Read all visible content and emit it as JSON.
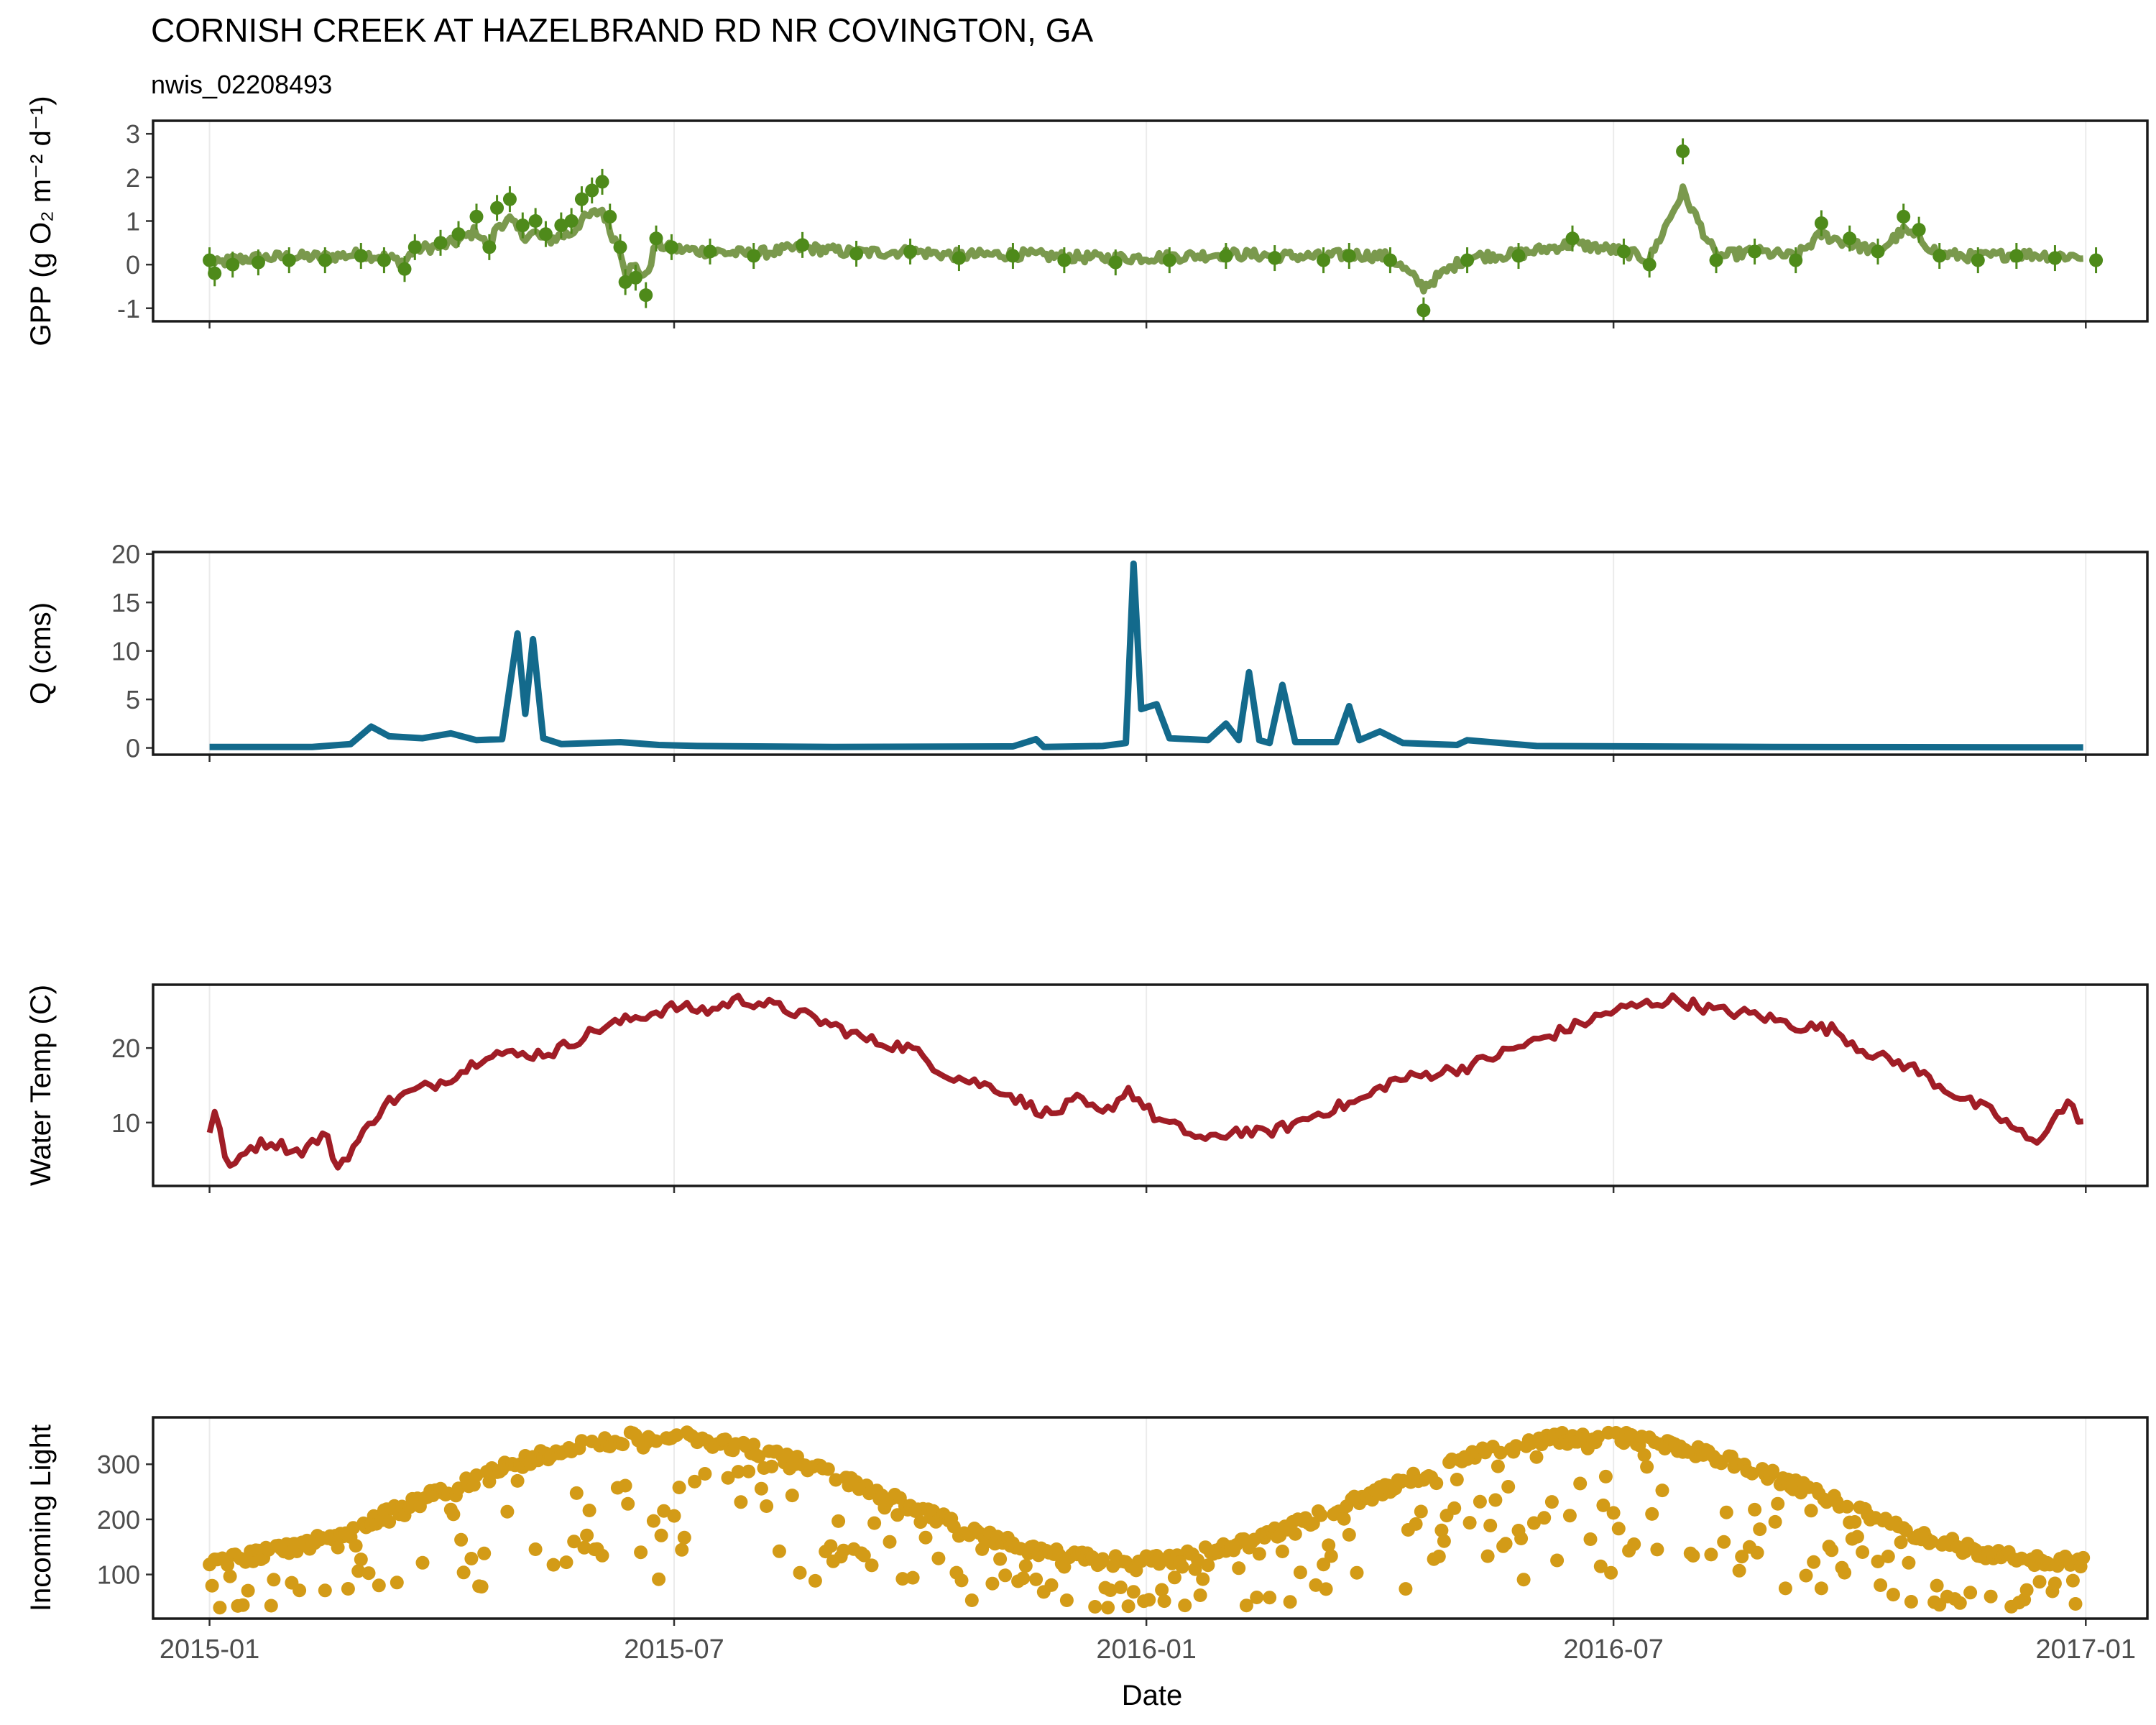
{
  "chart_data": {
    "type": "faceted_timeseries",
    "title": "CORNISH CREEK AT HAZELBRAND RD NR COVINGTON, GA",
    "subtitle": "nwis_02208493",
    "xlabel": "Date",
    "x_ticks": [
      "2015-01",
      "2015-07",
      "2016-01",
      "2016-07",
      "2017-01"
    ],
    "x_range": [
      "2014-12-10",
      "2017-01-25"
    ],
    "grid": "vertical major lines on date ticks, no horizontal grid",
    "colors": {
      "gpp": "#4e8a1a",
      "gpp_line": "#6b8e3a",
      "q": "#136a8c",
      "temp": "#a01d26",
      "light": "#d39b17"
    },
    "panels": [
      {
        "id": "gpp",
        "type": "scatter+line with error bars",
        "ylabel": "GPP (g O₂ m⁻² d⁻¹)",
        "ylim": [
          -1.3,
          3.3
        ],
        "y_ticks": [
          -1,
          0,
          1,
          2,
          3
        ],
        "points": [
          [
            "2015-01-01",
            0.1
          ],
          [
            "2015-01-03",
            -0.2
          ],
          [
            "2015-01-10",
            0.0
          ],
          [
            "2015-01-20",
            0.05
          ],
          [
            "2015-02-01",
            0.1
          ],
          [
            "2015-02-15",
            0.1
          ],
          [
            "2015-03-01",
            0.2
          ],
          [
            "2015-03-10",
            0.1
          ],
          [
            "2015-03-18",
            -0.1
          ],
          [
            "2015-03-22",
            0.4
          ],
          [
            "2015-04-01",
            0.5
          ],
          [
            "2015-04-08",
            0.7
          ],
          [
            "2015-04-15",
            1.1
          ],
          [
            "2015-04-20",
            0.4
          ],
          [
            "2015-04-23",
            1.3
          ],
          [
            "2015-04-28",
            1.5
          ],
          [
            "2015-05-03",
            0.9
          ],
          [
            "2015-05-08",
            1.0
          ],
          [
            "2015-05-12",
            0.7
          ],
          [
            "2015-05-18",
            0.9
          ],
          [
            "2015-05-22",
            1.0
          ],
          [
            "2015-05-26",
            1.5
          ],
          [
            "2015-05-30",
            1.7
          ],
          [
            "2015-06-03",
            1.9
          ],
          [
            "2015-06-06",
            1.1
          ],
          [
            "2015-06-10",
            0.4
          ],
          [
            "2015-06-12",
            -0.4
          ],
          [
            "2015-06-16",
            -0.3
          ],
          [
            "2015-06-20",
            -0.7
          ],
          [
            "2015-06-24",
            0.6
          ],
          [
            "2015-06-30",
            0.4
          ],
          [
            "2015-07-15",
            0.3
          ],
          [
            "2015-08-01",
            0.2
          ],
          [
            "2015-08-20",
            0.45
          ],
          [
            "2015-09-10",
            0.25
          ],
          [
            "2015-10-01",
            0.3
          ],
          [
            "2015-10-20",
            0.15
          ],
          [
            "2015-11-10",
            0.2
          ],
          [
            "2015-11-30",
            0.1
          ],
          [
            "2015-12-20",
            0.05
          ],
          [
            "2016-01-10",
            0.1
          ],
          [
            "2016-02-01",
            0.2
          ],
          [
            "2016-02-20",
            0.15
          ],
          [
            "2016-03-10",
            0.1
          ],
          [
            "2016-03-20",
            0.2
          ],
          [
            "2016-04-05",
            0.1
          ],
          [
            "2016-04-18",
            -1.05
          ],
          [
            "2016-05-05",
            0.1
          ],
          [
            "2016-05-25",
            0.2
          ],
          [
            "2016-06-15",
            0.6
          ],
          [
            "2016-07-05",
            0.3
          ],
          [
            "2016-07-15",
            0.0
          ],
          [
            "2016-07-28",
            2.6
          ],
          [
            "2016-08-10",
            0.1
          ],
          [
            "2016-08-25",
            0.3
          ],
          [
            "2016-09-10",
            0.1
          ],
          [
            "2016-09-20",
            0.95
          ],
          [
            "2016-10-01",
            0.6
          ],
          [
            "2016-10-12",
            0.3
          ],
          [
            "2016-10-22",
            1.1
          ],
          [
            "2016-10-28",
            0.8
          ],
          [
            "2016-11-05",
            0.2
          ],
          [
            "2016-11-20",
            0.1
          ],
          [
            "2016-12-05",
            0.2
          ],
          [
            "2016-12-20",
            0.15
          ],
          [
            "2017-01-05",
            0.1
          ]
        ]
      },
      {
        "id": "q",
        "type": "line",
        "ylabel": "Q (cms)",
        "ylim": [
          -0.7,
          20.2
        ],
        "y_ticks": [
          0,
          5,
          10,
          15,
          20
        ],
        "points": [
          [
            "2015-01-01",
            0.1
          ],
          [
            "2015-02-10",
            0.1
          ],
          [
            "2015-02-25",
            0.4
          ],
          [
            "2015-03-05",
            2.2
          ],
          [
            "2015-03-12",
            1.2
          ],
          [
            "2015-03-25",
            1.0
          ],
          [
            "2015-04-05",
            1.5
          ],
          [
            "2015-04-15",
            0.8
          ],
          [
            "2015-04-25",
            0.9
          ],
          [
            "2015-05-01",
            11.8
          ],
          [
            "2015-05-04",
            3.5
          ],
          [
            "2015-05-07",
            11.2
          ],
          [
            "2015-05-11",
            1.0
          ],
          [
            "2015-05-18",
            0.4
          ],
          [
            "2015-06-10",
            0.6
          ],
          [
            "2015-06-25",
            0.3
          ],
          [
            "2015-07-10",
            0.2
          ],
          [
            "2015-09-01",
            0.1
          ],
          [
            "2015-11-10",
            0.15
          ],
          [
            "2015-11-19",
            0.9
          ],
          [
            "2015-11-22",
            0.1
          ],
          [
            "2015-12-15",
            0.2
          ],
          [
            "2015-12-24",
            0.5
          ],
          [
            "2015-12-27",
            19.0
          ],
          [
            "2015-12-30",
            4.0
          ],
          [
            "2016-01-05",
            4.5
          ],
          [
            "2016-01-10",
            1.0
          ],
          [
            "2016-01-25",
            0.8
          ],
          [
            "2016-02-01",
            2.5
          ],
          [
            "2016-02-06",
            0.8
          ],
          [
            "2016-02-10",
            7.8
          ],
          [
            "2016-02-14",
            0.8
          ],
          [
            "2016-02-18",
            0.5
          ],
          [
            "2016-02-23",
            6.5
          ],
          [
            "2016-02-28",
            0.6
          ],
          [
            "2016-03-15",
            0.6
          ],
          [
            "2016-03-20",
            4.3
          ],
          [
            "2016-03-24",
            0.8
          ],
          [
            "2016-04-01",
            1.7
          ],
          [
            "2016-04-10",
            0.5
          ],
          [
            "2016-05-01",
            0.3
          ],
          [
            "2016-05-05",
            0.8
          ],
          [
            "2016-06-01",
            0.2
          ],
          [
            "2016-09-01",
            0.1
          ],
          [
            "2016-12-31",
            0.05
          ]
        ]
      },
      {
        "id": "temp",
        "type": "line",
        "ylabel": "Water Temp (C)",
        "ylim": [
          1.5,
          28.5
        ],
        "y_ticks": [
          10,
          20
        ],
        "points": [
          [
            "2015-01-01",
            8.5
          ],
          [
            "2015-01-04",
            12.0
          ],
          [
            "2015-01-08",
            3.0
          ],
          [
            "2015-01-15",
            6.5
          ],
          [
            "2015-01-25",
            7.5
          ],
          [
            "2015-02-05",
            6.0
          ],
          [
            "2015-02-15",
            8.5
          ],
          [
            "2015-02-20",
            4.0
          ],
          [
            "2015-03-01",
            8.0
          ],
          [
            "2015-03-10",
            12.5
          ],
          [
            "2015-03-20",
            14.0
          ],
          [
            "2015-04-01",
            15.5
          ],
          [
            "2015-04-10",
            17.0
          ],
          [
            "2015-04-20",
            19.5
          ],
          [
            "2015-05-01",
            19.0
          ],
          [
            "2015-05-15",
            19.5
          ],
          [
            "2015-06-01",
            22.5
          ],
          [
            "2015-06-15",
            24.0
          ],
          [
            "2015-07-01",
            25.5
          ],
          [
            "2015-07-15",
            25.0
          ],
          [
            "2015-07-25",
            26.5
          ],
          [
            "2015-08-05",
            26.0
          ],
          [
            "2015-08-20",
            24.5
          ],
          [
            "2015-09-01",
            23.0
          ],
          [
            "2015-09-15",
            21.0
          ],
          [
            "2015-10-01",
            20.0
          ],
          [
            "2015-10-15",
            16.5
          ],
          [
            "2015-10-25",
            15.5
          ],
          [
            "2015-11-05",
            14.5
          ],
          [
            "2015-11-15",
            12.5
          ],
          [
            "2015-11-25",
            11.0
          ],
          [
            "2015-12-05",
            13.0
          ],
          [
            "2015-12-15",
            11.0
          ],
          [
            "2015-12-25",
            14.5
          ],
          [
            "2016-01-05",
            10.5
          ],
          [
            "2016-01-15",
            9.0
          ],
          [
            "2016-01-25",
            7.5
          ],
          [
            "2016-02-05",
            9.0
          ],
          [
            "2016-02-15",
            8.5
          ],
          [
            "2016-02-25",
            9.5
          ],
          [
            "2016-03-10",
            11.5
          ],
          [
            "2016-03-25",
            13.0
          ],
          [
            "2016-04-05",
            15.5
          ],
          [
            "2016-04-20",
            16.5
          ],
          [
            "2016-05-05",
            17.5
          ],
          [
            "2016-05-20",
            19.5
          ],
          [
            "2016-06-05",
            21.5
          ],
          [
            "2016-06-20",
            23.5
          ],
          [
            "2016-07-01",
            25.0
          ],
          [
            "2016-07-15",
            26.0
          ],
          [
            "2016-07-25",
            26.5
          ],
          [
            "2016-08-10",
            25.0
          ],
          [
            "2016-08-25",
            24.5
          ],
          [
            "2016-09-10",
            23.0
          ],
          [
            "2016-09-25",
            22.5
          ],
          [
            "2016-10-05",
            20.0
          ],
          [
            "2016-10-15",
            18.5
          ],
          [
            "2016-10-25",
            17.5
          ],
          [
            "2016-11-05",
            15.0
          ],
          [
            "2016-11-15",
            13.0
          ],
          [
            "2016-11-25",
            11.5
          ],
          [
            "2016-12-05",
            9.0
          ],
          [
            "2016-12-12",
            7.0
          ],
          [
            "2016-12-18",
            10.0
          ],
          [
            "2016-12-25",
            12.5
          ],
          [
            "2016-12-31",
            10.0
          ]
        ]
      },
      {
        "id": "light",
        "type": "scatter",
        "ylabel": "Incoming Light",
        "ylim": [
          20,
          385
        ],
        "y_ticks": [
          100,
          200,
          300
        ],
        "seasonal_envelope": {
          "upper_peak": 360,
          "upper_trough": 135,
          "peak_date": "06-25",
          "note": "dense points along clear-sky envelope with cloudy-day scatter below"
        },
        "points": [
          [
            "2015-01-01",
            110
          ],
          [
            "2015-01-05",
            140
          ],
          [
            "2015-01-10",
            60
          ],
          [
            "2015-01-20",
            145
          ],
          [
            "2015-02-01",
            150
          ],
          [
            "2015-02-10",
            90
          ],
          [
            "2015-02-20",
            170
          ],
          [
            "2015-03-01",
            190
          ],
          [
            "2015-03-15",
            210
          ],
          [
            "2015-03-25",
            60
          ],
          [
            "2015-04-01",
            240
          ],
          [
            "2015-04-15",
            260
          ],
          [
            "2015-04-25",
            120
          ],
          [
            "2015-05-05",
            290
          ],
          [
            "2015-05-20",
            320
          ],
          [
            "2015-06-01",
            340
          ],
          [
            "2015-06-10",
            200
          ],
          [
            "2015-06-20",
            350
          ],
          [
            "2015-07-01",
            330
          ],
          [
            "2015-07-15",
            355
          ],
          [
            "2015-07-25",
            300
          ],
          [
            "2015-08-05",
            340
          ],
          [
            "2015-08-20",
            310
          ],
          [
            "2015-09-01",
            290
          ],
          [
            "2015-09-10",
            180
          ],
          [
            "2015-09-20",
            270
          ],
          [
            "2015-10-01",
            240
          ],
          [
            "2015-10-15",
            210
          ],
          [
            "2015-10-25",
            100
          ],
          [
            "2015-11-05",
            180
          ],
          [
            "2015-11-15",
            150
          ],
          [
            "2015-11-25",
            60
          ],
          [
            "2015-12-05",
            140
          ],
          [
            "2015-12-15",
            120
          ],
          [
            "2015-12-25",
            80
          ],
          [
            "2016-01-05",
            130
          ],
          [
            "2016-01-15",
            50
          ],
          [
            "2016-01-25",
            150
          ],
          [
            "2016-02-05",
            160
          ],
          [
            "2016-02-15",
            90
          ],
          [
            "2016-02-25",
            190
          ],
          [
            "2016-03-10",
            220
          ],
          [
            "2016-03-25",
            240
          ],
          [
            "2016-04-10",
            270
          ],
          [
            "2016-04-25",
            100
          ],
          [
            "2016-05-10",
            300
          ],
          [
            "2016-05-25",
            330
          ],
          [
            "2016-06-05",
            140
          ],
          [
            "2016-06-15",
            350
          ],
          [
            "2016-06-25",
            360
          ],
          [
            "2016-07-05",
            340
          ],
          [
            "2016-07-15",
            280
          ],
          [
            "2016-07-25",
            350
          ],
          [
            "2016-08-10",
            310
          ],
          [
            "2016-08-25",
            170
          ],
          [
            "2016-09-05",
            290
          ],
          [
            "2016-09-20",
            260
          ],
          [
            "2016-10-05",
            230
          ],
          [
            "2016-10-15",
            110
          ],
          [
            "2016-10-25",
            210
          ],
          [
            "2016-11-05",
            190
          ],
          [
            "2016-11-15",
            160
          ],
          [
            "2016-11-25",
            60
          ],
          [
            "2016-12-05",
            140
          ],
          [
            "2016-12-15",
            130
          ],
          [
            "2016-12-25",
            50
          ],
          [
            "2016-12-31",
            135
          ]
        ]
      }
    ]
  }
}
